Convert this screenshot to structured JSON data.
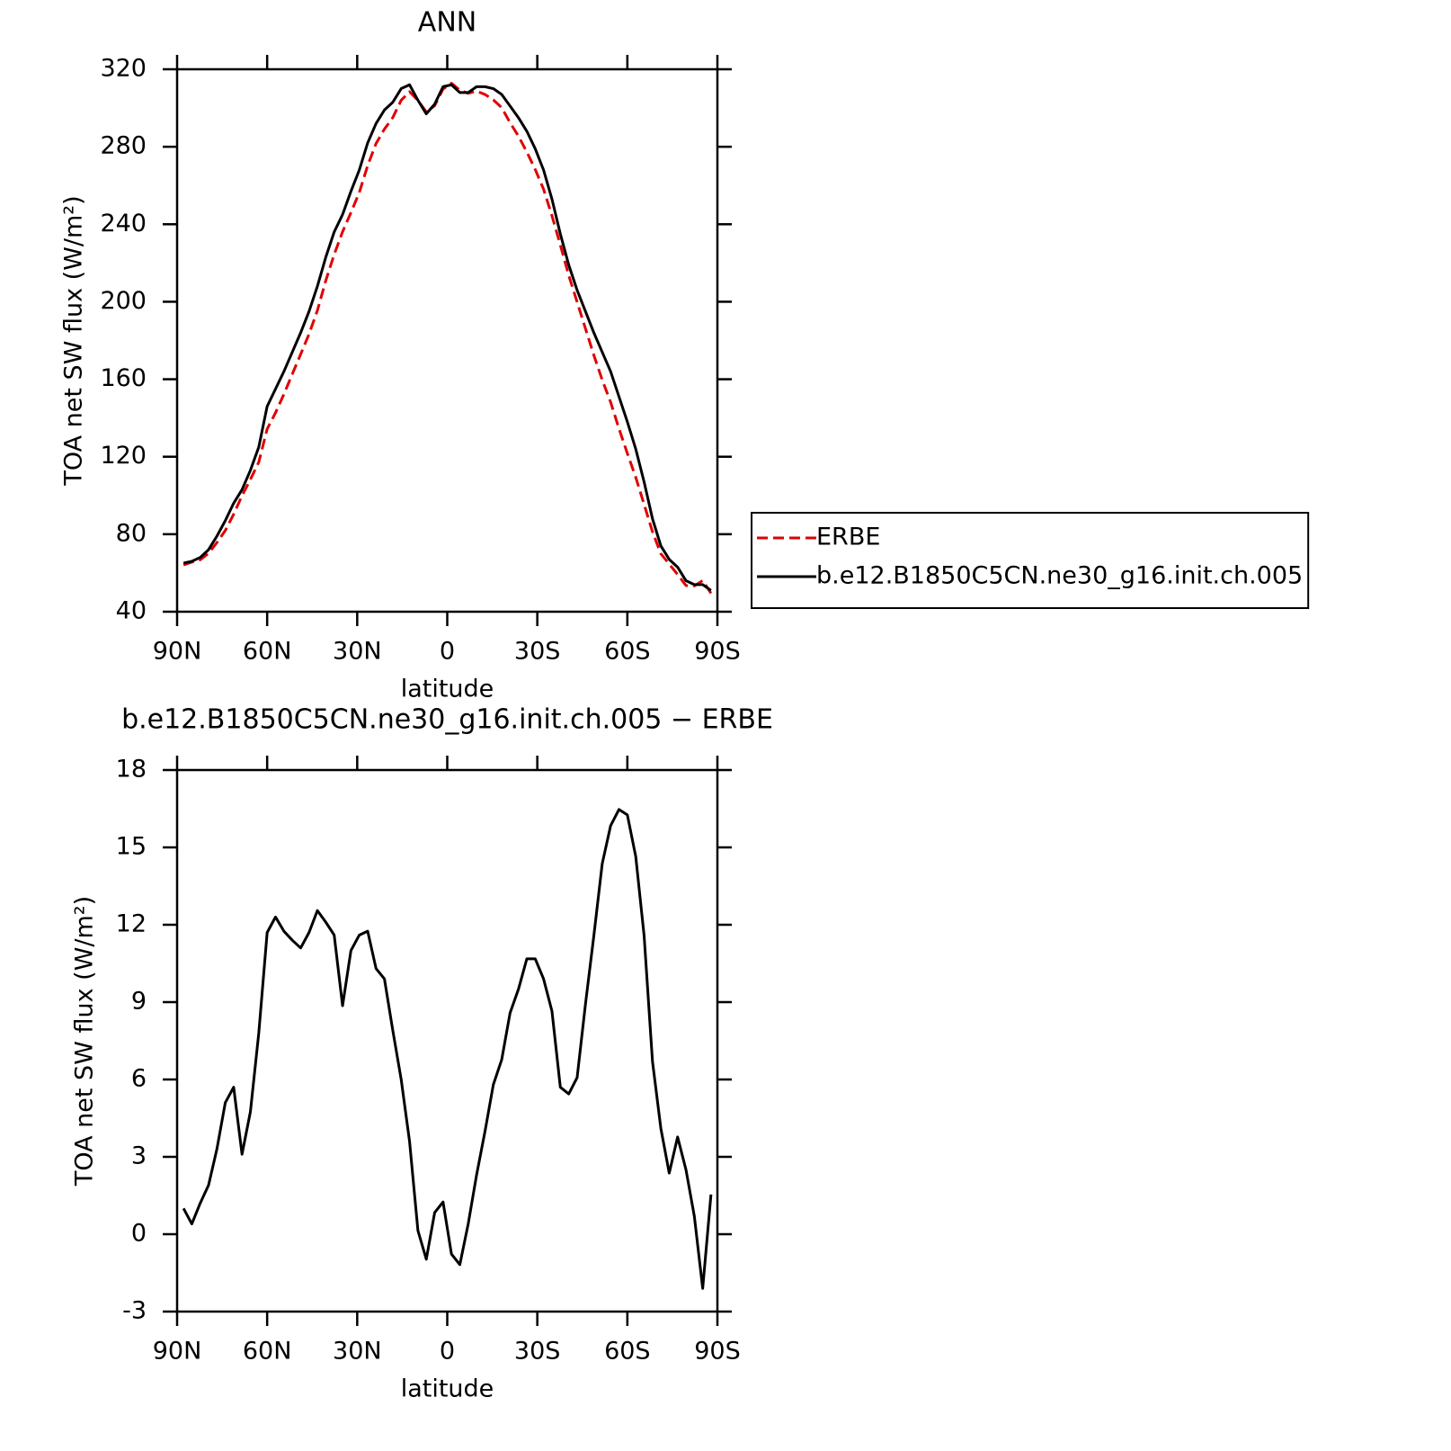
{
  "chart_data": [
    {
      "type": "line",
      "title": "ANN",
      "xlabel": "latitude",
      "ylabel": "TOA net SW flux (W/m²)",
      "x": [
        87.86,
        85.1,
        82.31,
        79.53,
        76.74,
        73.95,
        71.16,
        68.37,
        65.58,
        62.79,
        60.0,
        57.21,
        54.42,
        51.63,
        48.84,
        46.05,
        43.26,
        40.47,
        37.67,
        34.88,
        32.09,
        29.3,
        26.51,
        23.72,
        20.93,
        18.14,
        15.35,
        12.56,
        9.77,
        6.98,
        4.19,
        1.4,
        -1.4,
        -4.19,
        -6.98,
        -9.77,
        -12.56,
        -15.35,
        -18.14,
        -20.93,
        -23.72,
        -26.51,
        -29.3,
        -32.09,
        -34.88,
        -37.67,
        -40.47,
        -43.26,
        -46.05,
        -48.84,
        -51.63,
        -54.42,
        -57.21,
        -60.0,
        -62.79,
        -65.58,
        -68.37,
        -71.16,
        -73.95,
        -76.74,
        -79.53,
        -82.31,
        -85.1,
        -87.86
      ],
      "series": [
        {
          "name": "ERBE",
          "color": "#e00000",
          "style": "dashed",
          "values": [
            64.1,
            65.6,
            66.8,
            70.1,
            75.7,
            81.9,
            90.3,
            99.9,
            108.3,
            117.2,
            134.3,
            142.7,
            152.3,
            162.6,
            172.9,
            183.3,
            195.5,
            210.9,
            224.4,
            236.1,
            246,
            256.4,
            270.3,
            281.7,
            289.1,
            295.1,
            304,
            308.4,
            303.9,
            298,
            301.2,
            309.8,
            312.8,
            309.2,
            307.6,
            308.7,
            307,
            304.2,
            300.2,
            292.4,
            285.5,
            277.3,
            268.3,
            258.1,
            244.4,
            229.3,
            213.6,
            199.9,
            186.1,
            172.4,
            159.6,
            148.2,
            134.5,
            121.7,
            109.4,
            95.4,
            81.3,
            69.9,
            64.6,
            59.2,
            53.5,
            53.3,
            56.1,
            49.5
          ]
        },
        {
          "name": "b.e12.B1850C5CN.ne30_g16.init.ch.005",
          "color": "#000000",
          "style": "solid",
          "values": [
            65.1,
            66,
            68,
            72,
            79,
            87,
            96,
            103,
            113,
            125,
            146,
            155,
            164,
            174,
            184,
            195,
            208,
            223,
            236,
            245,
            257,
            268,
            282,
            292,
            299,
            303,
            310,
            312,
            304,
            297,
            302,
            311,
            312,
            308,
            308,
            311,
            311,
            310,
            307,
            301,
            295,
            288,
            279,
            268,
            253,
            235,
            219,
            206,
            195,
            184,
            174,
            164,
            151,
            138,
            124,
            107,
            88,
            74,
            67,
            63,
            56,
            54,
            54,
            51
          ]
        }
      ],
      "xlim": [
        90,
        -90
      ],
      "xticks": [
        {
          "value": 90,
          "label": "90N"
        },
        {
          "value": 60,
          "label": "60N"
        },
        {
          "value": 30,
          "label": "30N"
        },
        0,
        {
          "value": -30,
          "label": "30S"
        },
        {
          "value": -60,
          "label": "60S"
        },
        {
          "value": -90,
          "label": "90S"
        }
      ],
      "ylim": [
        40,
        320
      ],
      "yticks": [
        40,
        80,
        120,
        160,
        200,
        240,
        280,
        320
      ],
      "legend": "right"
    },
    {
      "type": "line",
      "title": "b.e12.B1850C5CN.ne30_g16.init.ch.005 − ERBE",
      "xlabel": "latitude",
      "ylabel": "TOA net SW flux (W/m²)",
      "x": [
        87.86,
        85.1,
        82.31,
        79.53,
        76.74,
        73.95,
        71.16,
        68.37,
        65.58,
        62.79,
        60.0,
        57.21,
        54.42,
        51.63,
        48.84,
        46.05,
        43.26,
        40.47,
        37.67,
        34.88,
        32.09,
        29.3,
        26.51,
        23.72,
        20.93,
        18.14,
        15.35,
        12.56,
        9.77,
        6.98,
        4.19,
        1.4,
        -1.4,
        -4.19,
        -6.98,
        -9.77,
        -12.56,
        -15.35,
        -18.14,
        -20.93,
        -23.72,
        -26.51,
        -29.3,
        -32.09,
        -34.88,
        -37.67,
        -40.47,
        -43.26,
        -46.05,
        -48.84,
        -51.63,
        -54.42,
        -57.21,
        -60.0,
        -62.79,
        -65.58,
        -68.37,
        -71.16,
        -73.95,
        -76.74,
        -79.53,
        -82.31,
        -85.1,
        -87.86
      ],
      "series": [
        {
          "color": "#000000",
          "style": "solid",
          "values": [
            1.0,
            0.4,
            1.2,
            1.9,
            3.3,
            5.1,
            5.7,
            3.1,
            4.75,
            7.8,
            11.7,
            12.3,
            11.75,
            11.4,
            11.1,
            11.7,
            12.55,
            12.1,
            11.6,
            8.86,
            11.0,
            11.6,
            11.75,
            10.3,
            9.9,
            7.9,
            6.0,
            3.6,
            0.14,
            -0.97,
            0.84,
            1.25,
            -0.77,
            -1.18,
            0.4,
            2.3,
            3.98,
            5.8,
            6.77,
            8.58,
            9.5,
            10.68,
            10.68,
            9.9,
            8.65,
            5.7,
            5.44,
            6.07,
            8.93,
            11.58,
            14.37,
            15.84,
            16.47,
            16.26,
            14.65,
            11.58,
            6.7,
            4.1,
            2.37,
            3.77,
            2.5,
            0.7,
            -2.1,
            1.54
          ]
        }
      ],
      "xlim": [
        90,
        -90
      ],
      "xticks": [
        {
          "value": 90,
          "label": "90N"
        },
        {
          "value": 60,
          "label": "60N"
        },
        {
          "value": 30,
          "label": "30N"
        },
        0,
        {
          "value": -30,
          "label": "30S"
        },
        {
          "value": -60,
          "label": "60S"
        },
        {
          "value": -90,
          "label": "90S"
        }
      ],
      "ylim": [
        -3,
        18
      ],
      "yticks": [
        -3,
        0,
        3,
        6,
        9,
        12,
        15,
        18
      ]
    }
  ]
}
